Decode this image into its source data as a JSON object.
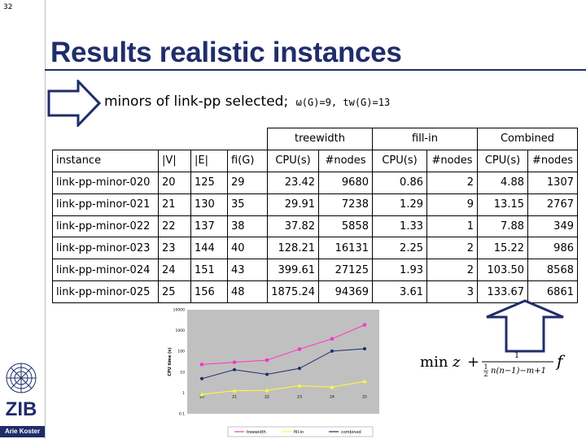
{
  "slide_number": "32",
  "title": "Results realistic instances",
  "subtitle": {
    "main": "minors of link-pp selected;",
    "small": "ω(G)=9, tw(G)=13"
  },
  "author": "Arie Koster",
  "table": {
    "group_headers": [
      "treewidth",
      "fill-in",
      "Combined"
    ],
    "columns": [
      "instance",
      "|V|",
      "|E|",
      "fi(G)",
      "CPU(s)",
      "#nodes",
      "CPU(s)",
      "#nodes",
      "CPU(s)",
      "#nodes"
    ],
    "rows": [
      [
        "link-pp-minor-020",
        "20",
        "125",
        "29",
        "23.42",
        "9680",
        "0.86",
        "2",
        "4.88",
        "1307"
      ],
      [
        "link-pp-minor-021",
        "21",
        "130",
        "35",
        "29.91",
        "7238",
        "1.29",
        "9",
        "13.15",
        "2767"
      ],
      [
        "link-pp-minor-022",
        "22",
        "137",
        "38",
        "37.82",
        "5858",
        "1.33",
        "1",
        "7.88",
        "349"
      ],
      [
        "link-pp-minor-023",
        "23",
        "144",
        "40",
        "128.21",
        "16131",
        "2.25",
        "2",
        "15.22",
        "986"
      ],
      [
        "link-pp-minor-024",
        "24",
        "151",
        "43",
        "399.61",
        "27125",
        "1.93",
        "2",
        "103.50",
        "8568"
      ],
      [
        "link-pp-minor-025",
        "25",
        "156",
        "48",
        "1875.24",
        "94369",
        "3.61",
        "3",
        "133.67",
        "6861"
      ]
    ]
  },
  "formula": {
    "left": "min",
    "var": "z",
    "plus": "+",
    "numerator": "1",
    "den_prefix": "1",
    "den_prefix_den": "2",
    "den_suffix": "n(n−1)−m+1",
    "right": "f"
  },
  "chart_data": {
    "type": "line",
    "x": [
      20,
      21,
      22,
      23,
      24,
      25
    ],
    "ylabel": "CPU time (s)",
    "yscale": "log",
    "ylim": [
      0.1,
      10000
    ],
    "y_ticks": [
      "10000",
      "1000",
      "100",
      "10",
      "1",
      "0.1"
    ],
    "x_ticks": [
      "20",
      "21",
      "22",
      "23",
      "24",
      "25"
    ],
    "series": [
      {
        "name": "treewidth",
        "color": "#ff33cc",
        "values": [
          23.42,
          29.91,
          37.82,
          128.21,
          399.61,
          1875.24
        ]
      },
      {
        "name": "fill-in",
        "color": "#ffff33",
        "values": [
          0.86,
          1.29,
          1.33,
          2.25,
          1.93,
          3.61
        ]
      },
      {
        "name": "combined",
        "color": "#1f2d6b",
        "values": [
          4.88,
          13.15,
          7.88,
          15.22,
          103.5,
          133.67
        ]
      }
    ],
    "legend_position": "bottom",
    "plot_background": "#c0c0c0"
  }
}
